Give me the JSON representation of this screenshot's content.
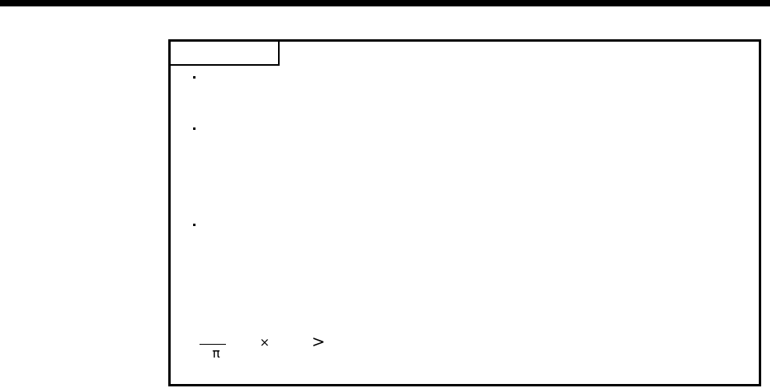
{
  "formula": {
    "pi": "π",
    "times": "×",
    "greater": ">"
  },
  "bullets": [
    "·",
    "·",
    "·"
  ]
}
